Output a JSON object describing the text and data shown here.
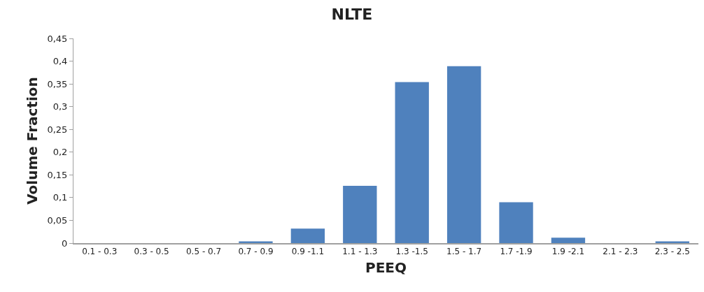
{
  "chart_data": {
    "type": "bar",
    "title": "NLTE",
    "xlabel": "PEEQ",
    "ylabel": "Volume Fraction",
    "categories": [
      "0.1 - 0.3",
      "0.3 - 0.5",
      "0.5 - 0.7",
      "0.7 - 0.9",
      "0.9 -1.1",
      "1.1 - 1.3",
      "1.3 -1.5",
      "1.5 - 1.7",
      "1.7 -1.9",
      "1.9 -2.1",
      "2.1 - 2.3",
      "2.3 - 2.5"
    ],
    "values": [
      0,
      0,
      0,
      0.004,
      0.032,
      0.126,
      0.354,
      0.389,
      0.09,
      0.012,
      0,
      0.004
    ],
    "color": "#4f81bd",
    "ylim": [
      0,
      0.45
    ],
    "yticks": [
      0,
      {
        "value": 0.05,
        "label": "0,05"
      },
      {
        "value": 0.1,
        "label": "0,1"
      },
      {
        "value": 0.15,
        "label": "0,15"
      },
      {
        "value": 0.2,
        "label": "0,2"
      },
      {
        "value": 0.25,
        "label": "0,25"
      },
      {
        "value": 0.3,
        "label": "0,3"
      },
      {
        "value": 0.35,
        "label": "0,35"
      },
      {
        "value": 0.4,
        "label": "0,4"
      },
      {
        "value": 0.45,
        "label": "0,45"
      }
    ],
    "grid": false
  }
}
